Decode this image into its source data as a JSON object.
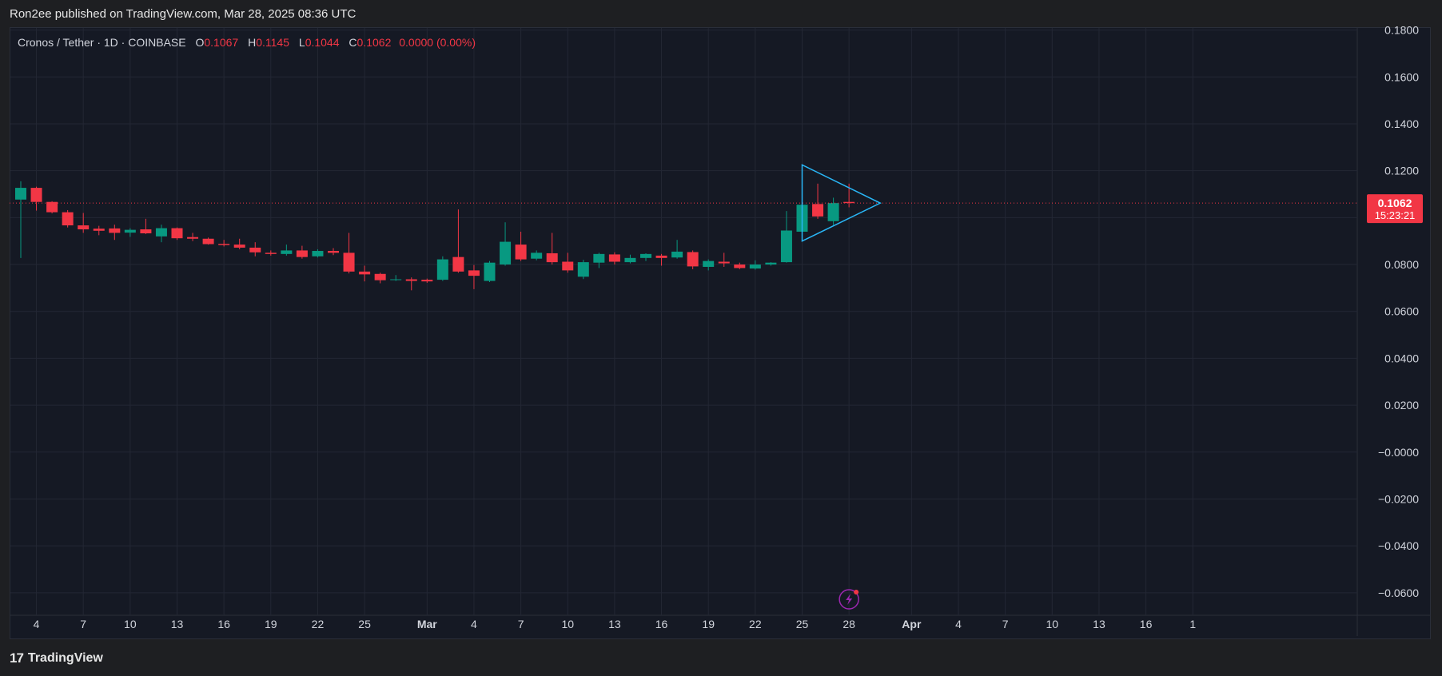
{
  "header": {
    "publisher_text": "Ron2ee published on TradingView.com, Mar 28, 2025 08:36 UTC"
  },
  "legend": {
    "symbol": "Cronos / Tether · 1D · COINBASE",
    "o_label": "O",
    "o_value": "0.1067",
    "h_label": "H",
    "h_value": "0.1145",
    "l_label": "L",
    "l_value": "0.1044",
    "c_label": "C",
    "c_value": "0.1062",
    "change": "0.0000 (0.00%)"
  },
  "price_badge": {
    "price": "0.1062",
    "countdown": "15:23:21"
  },
  "footer": {
    "brand": "TradingView"
  },
  "colors": {
    "background": "#151924",
    "up": "#089981",
    "down": "#f23645",
    "triangle": "#29b6f6",
    "grid": "#232734",
    "text": "#d1d4dc"
  },
  "chart_data": {
    "type": "candlestick",
    "symbol": "Cronos / Tether",
    "interval": "1D",
    "exchange": "COINBASE",
    "ylim": [
      -0.073,
      0.186
    ],
    "y_ticks": [
      "0.1800",
      "0.1600",
      "0.1400",
      "0.1200",
      "0.1000",
      "0.0800",
      "0.0600",
      "0.0400",
      "0.0200",
      "−0.0000",
      "−0.0200",
      "−0.0400",
      "−0.0600"
    ],
    "y_tick_values": [
      0.18,
      0.16,
      0.14,
      0.12,
      0.1,
      0.08,
      0.06,
      0.04,
      0.02,
      0,
      -0.02,
      -0.04,
      -0.06
    ],
    "x_tick_labels": [
      "4",
      "7",
      "10",
      "13",
      "16",
      "19",
      "22",
      "25",
      "Mar",
      "4",
      "7",
      "10",
      "13",
      "16",
      "19",
      "22",
      "25",
      "28",
      "Apr",
      "4",
      "7",
      "10",
      "13",
      "16",
      "1"
    ],
    "x_tick_dates": [
      "2025-02-04",
      "2025-02-07",
      "2025-02-10",
      "2025-02-13",
      "2025-02-16",
      "2025-02-19",
      "2025-02-22",
      "2025-02-25",
      "2025-03-01",
      "2025-03-04",
      "2025-03-07",
      "2025-03-10",
      "2025-03-13",
      "2025-03-16",
      "2025-03-19",
      "2025-03-22",
      "2025-03-25",
      "2025-03-28",
      "2025-04-01",
      "2025-04-04",
      "2025-04-07",
      "2025-04-10",
      "2025-04-13",
      "2025-04-16",
      "2025-04-19"
    ],
    "current_price": 0.1062,
    "candles": [
      {
        "date": "2025-02-03",
        "o": 0.1077,
        "h": 0.1155,
        "l": 0.0828,
        "c": 0.1127
      },
      {
        "date": "2025-02-04",
        "o": 0.1127,
        "h": 0.1132,
        "l": 0.103,
        "c": 0.1067
      },
      {
        "date": "2025-02-05",
        "o": 0.1067,
        "h": 0.107,
        "l": 0.1018,
        "c": 0.1023
      },
      {
        "date": "2025-02-06",
        "o": 0.1023,
        "h": 0.1032,
        "l": 0.0958,
        "c": 0.0967
      },
      {
        "date": "2025-02-07",
        "o": 0.0967,
        "h": 0.102,
        "l": 0.0935,
        "c": 0.095
      },
      {
        "date": "2025-02-08",
        "o": 0.0953,
        "h": 0.0965,
        "l": 0.0925,
        "c": 0.0944
      },
      {
        "date": "2025-02-09",
        "o": 0.0954,
        "h": 0.097,
        "l": 0.0905,
        "c": 0.0935
      },
      {
        "date": "2025-02-10",
        "o": 0.0936,
        "h": 0.0955,
        "l": 0.0918,
        "c": 0.0948
      },
      {
        "date": "2025-02-11",
        "o": 0.095,
        "h": 0.0995,
        "l": 0.093,
        "c": 0.0933
      },
      {
        "date": "2025-02-12",
        "o": 0.092,
        "h": 0.097,
        "l": 0.0895,
        "c": 0.0955
      },
      {
        "date": "2025-02-13",
        "o": 0.0955,
        "h": 0.0958,
        "l": 0.0905,
        "c": 0.0912
      },
      {
        "date": "2025-02-14",
        "o": 0.0917,
        "h": 0.0935,
        "l": 0.09,
        "c": 0.091
      },
      {
        "date": "2025-02-15",
        "o": 0.091,
        "h": 0.0915,
        "l": 0.0885,
        "c": 0.0887
      },
      {
        "date": "2025-02-16",
        "o": 0.0888,
        "h": 0.0905,
        "l": 0.0877,
        "c": 0.0883
      },
      {
        "date": "2025-02-17",
        "o": 0.0885,
        "h": 0.091,
        "l": 0.0865,
        "c": 0.0872
      },
      {
        "date": "2025-02-18",
        "o": 0.0872,
        "h": 0.0895,
        "l": 0.0835,
        "c": 0.0852
      },
      {
        "date": "2025-02-19",
        "o": 0.085,
        "h": 0.086,
        "l": 0.0838,
        "c": 0.0845
      },
      {
        "date": "2025-02-20",
        "o": 0.0845,
        "h": 0.0885,
        "l": 0.0838,
        "c": 0.086
      },
      {
        "date": "2025-02-21",
        "o": 0.086,
        "h": 0.088,
        "l": 0.0825,
        "c": 0.0832
      },
      {
        "date": "2025-02-22",
        "o": 0.0835,
        "h": 0.0865,
        "l": 0.083,
        "c": 0.0858
      },
      {
        "date": "2025-02-23",
        "o": 0.0858,
        "h": 0.087,
        "l": 0.084,
        "c": 0.085
      },
      {
        "date": "2025-02-24",
        "o": 0.085,
        "h": 0.0935,
        "l": 0.0762,
        "c": 0.077
      },
      {
        "date": "2025-02-25",
        "o": 0.077,
        "h": 0.0795,
        "l": 0.0728,
        "c": 0.0758
      },
      {
        "date": "2025-02-26",
        "o": 0.076,
        "h": 0.0765,
        "l": 0.072,
        "c": 0.0733
      },
      {
        "date": "2025-02-27",
        "o": 0.0735,
        "h": 0.0755,
        "l": 0.073,
        "c": 0.0737
      },
      {
        "date": "2025-02-28",
        "o": 0.0737,
        "h": 0.0745,
        "l": 0.069,
        "c": 0.073
      },
      {
        "date": "2025-03-01",
        "o": 0.0735,
        "h": 0.074,
        "l": 0.0722,
        "c": 0.0728
      },
      {
        "date": "2025-03-02",
        "o": 0.0735,
        "h": 0.0835,
        "l": 0.073,
        "c": 0.0822
      },
      {
        "date": "2025-03-03",
        "o": 0.0832,
        "h": 0.1035,
        "l": 0.0765,
        "c": 0.077
      },
      {
        "date": "2025-03-04",
        "o": 0.0775,
        "h": 0.0798,
        "l": 0.0695,
        "c": 0.0752
      },
      {
        "date": "2025-03-05",
        "o": 0.073,
        "h": 0.0815,
        "l": 0.0725,
        "c": 0.0808
      },
      {
        "date": "2025-03-06",
        "o": 0.08,
        "h": 0.098,
        "l": 0.0795,
        "c": 0.0897
      },
      {
        "date": "2025-03-07",
        "o": 0.0885,
        "h": 0.094,
        "l": 0.0815,
        "c": 0.0822
      },
      {
        "date": "2025-03-08",
        "o": 0.0825,
        "h": 0.086,
        "l": 0.0818,
        "c": 0.085
      },
      {
        "date": "2025-03-09",
        "o": 0.0848,
        "h": 0.0935,
        "l": 0.08,
        "c": 0.081
      },
      {
        "date": "2025-03-10",
        "o": 0.0812,
        "h": 0.085,
        "l": 0.0765,
        "c": 0.0775
      },
      {
        "date": "2025-03-11",
        "o": 0.0748,
        "h": 0.082,
        "l": 0.0738,
        "c": 0.081
      },
      {
        "date": "2025-03-12",
        "o": 0.0808,
        "h": 0.085,
        "l": 0.0785,
        "c": 0.0845
      },
      {
        "date": "2025-03-13",
        "o": 0.0843,
        "h": 0.0852,
        "l": 0.08,
        "c": 0.0812
      },
      {
        "date": "2025-03-14",
        "o": 0.081,
        "h": 0.0842,
        "l": 0.0805,
        "c": 0.0828
      },
      {
        "date": "2025-03-15",
        "o": 0.0828,
        "h": 0.0848,
        "l": 0.0815,
        "c": 0.0845
      },
      {
        "date": "2025-03-16",
        "o": 0.0838,
        "h": 0.0845,
        "l": 0.0795,
        "c": 0.0828
      },
      {
        "date": "2025-03-17",
        "o": 0.083,
        "h": 0.0905,
        "l": 0.0825,
        "c": 0.0855
      },
      {
        "date": "2025-03-18",
        "o": 0.0853,
        "h": 0.086,
        "l": 0.078,
        "c": 0.0792
      },
      {
        "date": "2025-03-19",
        "o": 0.079,
        "h": 0.0822,
        "l": 0.0775,
        "c": 0.0815
      },
      {
        "date": "2025-03-20",
        "o": 0.0812,
        "h": 0.085,
        "l": 0.079,
        "c": 0.0805
      },
      {
        "date": "2025-03-21",
        "o": 0.08,
        "h": 0.0808,
        "l": 0.078,
        "c": 0.0785
      },
      {
        "date": "2025-03-22",
        "o": 0.0783,
        "h": 0.0818,
        "l": 0.0778,
        "c": 0.08
      },
      {
        "date": "2025-03-23",
        "o": 0.08,
        "h": 0.081,
        "l": 0.0795,
        "c": 0.0808
      },
      {
        "date": "2025-03-24",
        "o": 0.081,
        "h": 0.1028,
        "l": 0.0808,
        "c": 0.0945
      },
      {
        "date": "2025-03-25",
        "o": 0.094,
        "h": 0.1225,
        "l": 0.0925,
        "c": 0.1055
      },
      {
        "date": "2025-03-26",
        "o": 0.1058,
        "h": 0.1145,
        "l": 0.0995,
        "c": 0.1005
      },
      {
        "date": "2025-03-27",
        "o": 0.0985,
        "h": 0.1085,
        "l": 0.0968,
        "c": 0.1062
      },
      {
        "date": "2025-03-28",
        "o": 0.1067,
        "h": 0.1145,
        "l": 0.1044,
        "c": 0.1062
      }
    ],
    "triangle_pattern": {
      "vertices": [
        {
          "date": "2025-03-25",
          "price": 0.1225
        },
        {
          "date": "2025-03-25",
          "price": 0.09
        },
        {
          "date": "2025-03-30",
          "price": 0.1062
        }
      ]
    }
  }
}
